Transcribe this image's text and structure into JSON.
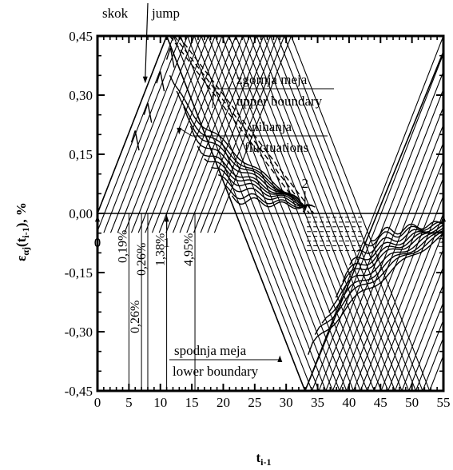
{
  "chart_data": {
    "type": "line",
    "title": "",
    "xlabel": "t",
    "xlabel_sub": "i-1",
    "ylabel": "ε",
    "ylabel_sub": "αj",
    "ylabel_tail": "(t",
    "ylabel_tail_sub": "i-1",
    "ylabel_end": "), %",
    "xlim": [
      0,
      55
    ],
    "ylim": [
      -0.45,
      0.45
    ],
    "x_ticks": [
      "0",
      "5",
      "10",
      "15",
      "20",
      "25",
      "30",
      "35",
      "40",
      "45",
      "50",
      "55"
    ],
    "y_ticks": [
      "0,45",
      "0,30",
      "0,15",
      "0,00",
      "-0,15",
      "-0,30",
      "-0,45"
    ],
    "grid": false,
    "hysteresis": {
      "load_reversal_times": [
        0,
        11,
        33,
        55
      ],
      "reversal_labels": [
        "0",
        "1",
        "2",
        "3"
      ],
      "peak_strain": 0.45,
      "lower_peak_strain": -0.45,
      "curve_count": 19,
      "curve_spacing_t": 1.1
    },
    "series": [
      {
        "name": "zgornja meja / upper boundary",
        "x": [
          11.5,
          33
        ],
        "y": [
          0.45,
          0.0
        ]
      },
      {
        "name": "spodnja meja / lower boundary",
        "x": [
          0,
          11,
          33,
          55
        ],
        "y": [
          0.0,
          0.45,
          -0.45,
          0.41
        ]
      }
    ],
    "annotations": {
      "skok": "skok",
      "jump": "jump",
      "upper_sl": "zgornja meja",
      "upper_en": "upper boundary",
      "fluct_sl": "nihanja",
      "fluct_en": "fluctuations",
      "lower_sl": "spodnja meja",
      "lower_en": "lower boundary",
      "percent_markers": [
        {
          "t": 5.0,
          "label": "0,19%"
        },
        {
          "t": 7.0,
          "label": "0,26%"
        },
        {
          "t": 8.0,
          "label": "0,26%"
        },
        {
          "t": 11.0,
          "label": "1,38%"
        },
        {
          "t": 15.5,
          "label": "4,95%"
        }
      ]
    }
  }
}
